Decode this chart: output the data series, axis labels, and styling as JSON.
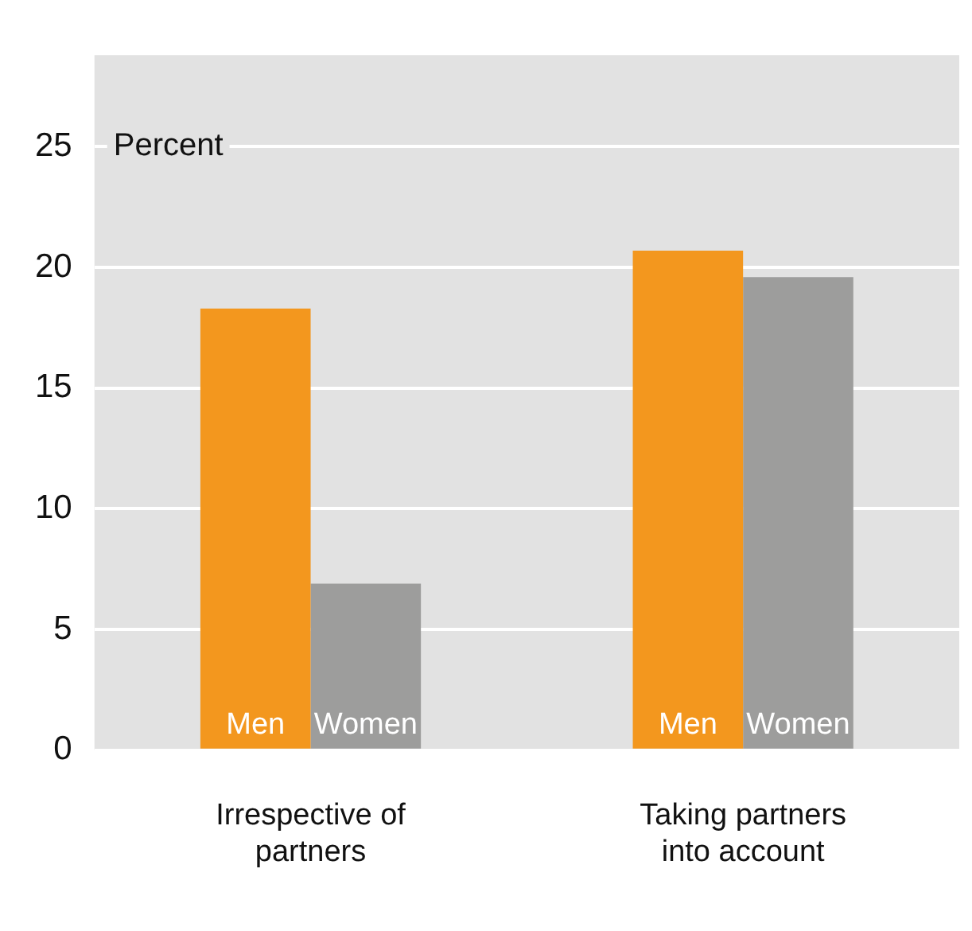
{
  "chart_data": {
    "type": "bar",
    "ylabel": "Percent",
    "categories": [
      "Irrespective of partners",
      "Taking partners into account"
    ],
    "series": [
      {
        "name": "Men",
        "color": "#f3971e",
        "values": [
          18.3,
          20.7
        ]
      },
      {
        "name": "Women",
        "color": "#9d9d9c",
        "values": [
          6.9,
          19.6
        ]
      }
    ],
    "ylim": [
      0,
      28.8
    ],
    "yticks": [
      0,
      5,
      10,
      15,
      20,
      25
    ],
    "grid": "y",
    "legend": false
  }
}
